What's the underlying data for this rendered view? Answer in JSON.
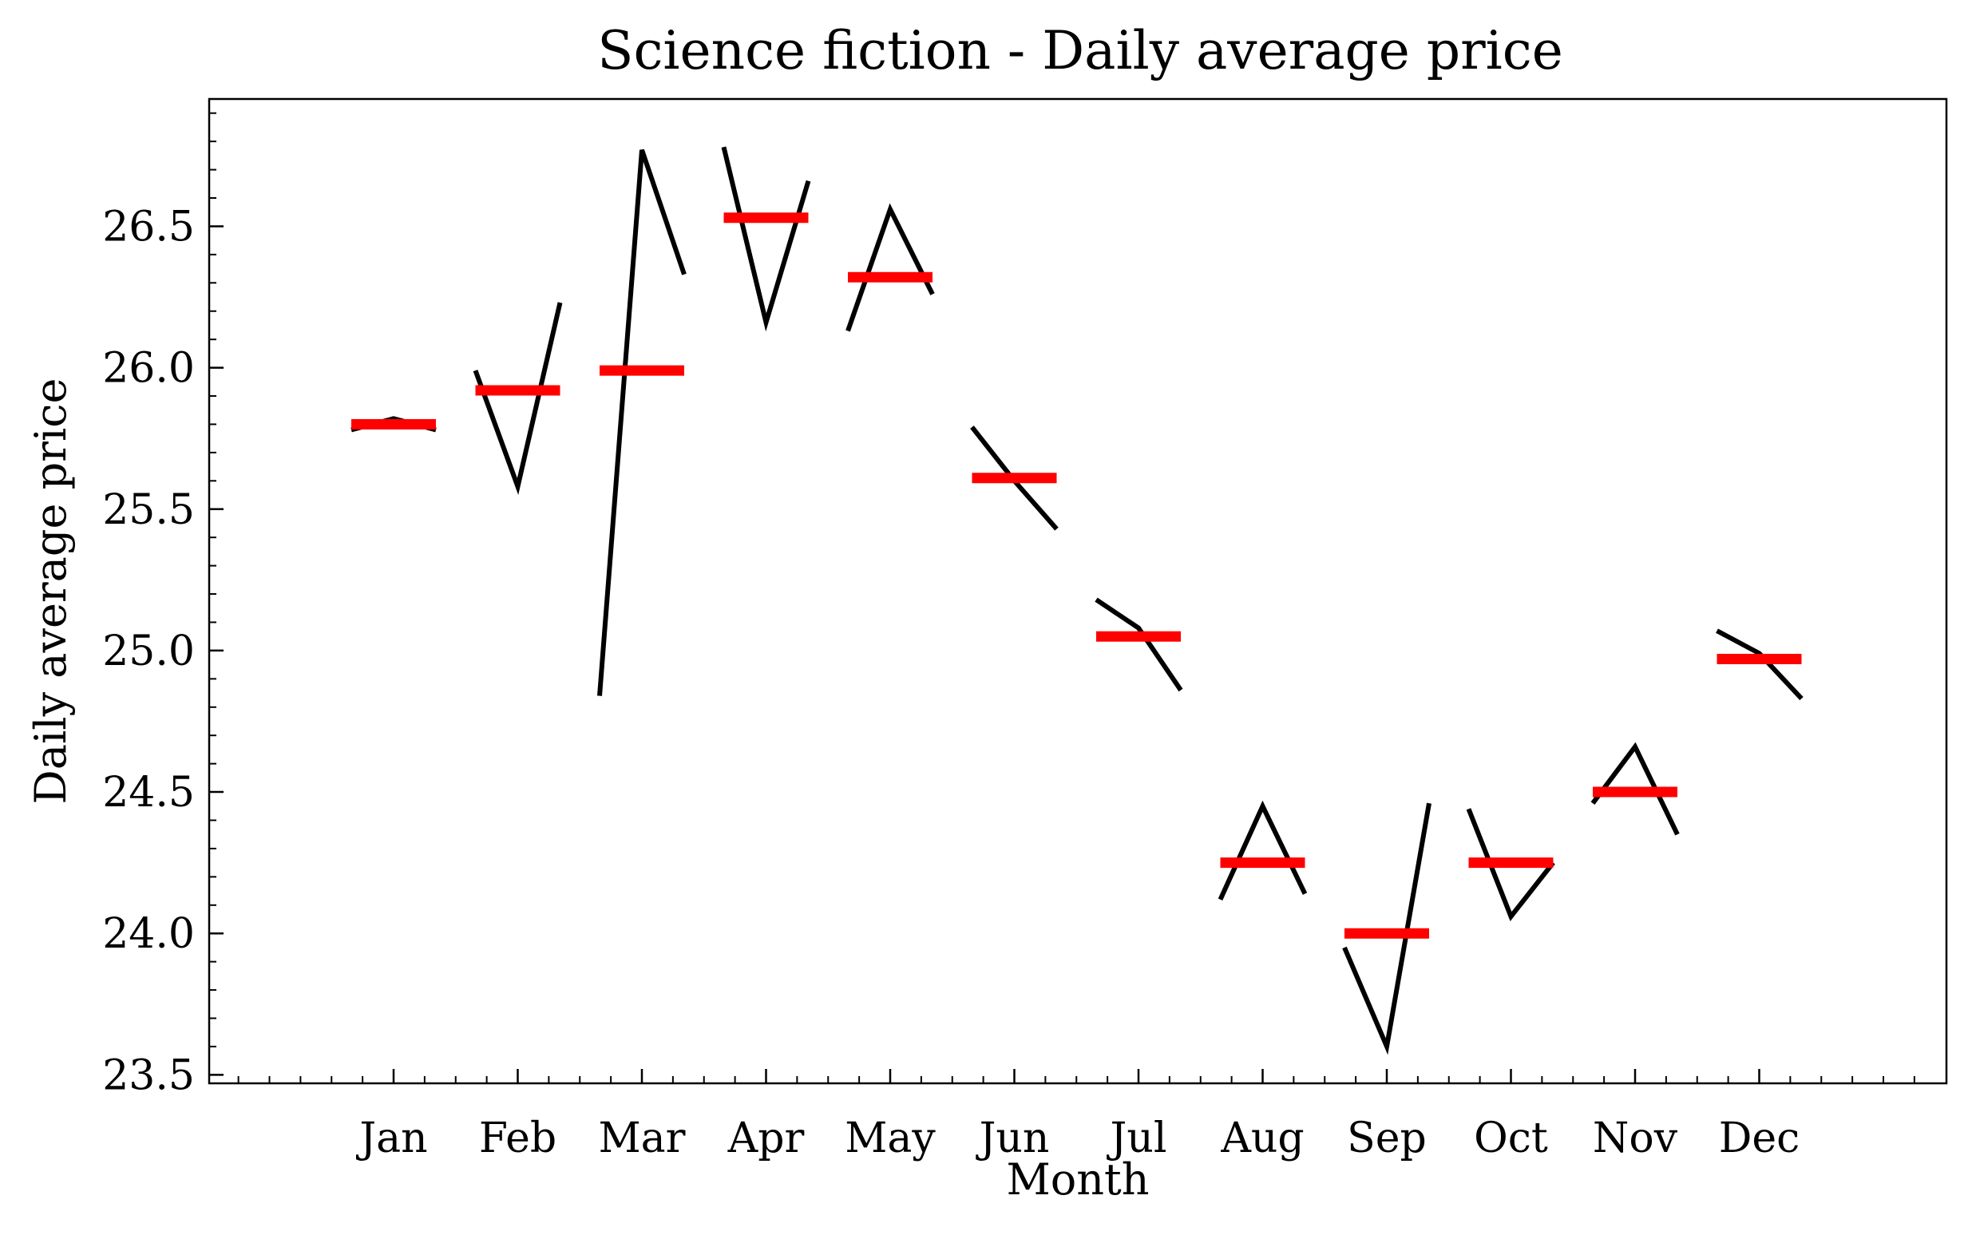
{
  "chart_data": {
    "type": "line",
    "title": "Science fiction - Daily average price",
    "xlabel": "Month",
    "ylabel": "Daily average price",
    "categories": [
      "Jan",
      "Feb",
      "Mar",
      "Apr",
      "May",
      "Jun",
      "Jul",
      "Aug",
      "Sep",
      "Oct",
      "Nov",
      "Dec"
    ],
    "ylim": [
      23.47,
      26.95
    ],
    "yticks": [
      23.5,
      24.0,
      24.5,
      25.0,
      25.5,
      26.0,
      26.5
    ],
    "ytick_labels": [
      "23.5",
      "24.0",
      "24.5",
      "25.0",
      "25.5",
      "26.0",
      "26.5"
    ],
    "series": [
      {
        "kind": "daily-price-segments",
        "color": "#000000",
        "values": [
          [
            25.78,
            25.82,
            25.78
          ],
          [
            25.99,
            25.58,
            26.23
          ],
          [
            24.84,
            26.77,
            26.33
          ],
          [
            26.78,
            26.16,
            26.66
          ],
          [
            26.13,
            26.56,
            26.26
          ],
          [
            25.79,
            25.6,
            25.43
          ],
          [
            25.18,
            25.08,
            24.86
          ],
          [
            24.12,
            24.45,
            24.14
          ],
          [
            23.95,
            23.6,
            24.46
          ],
          [
            24.44,
            24.06,
            24.25
          ],
          [
            24.46,
            24.66,
            24.35
          ],
          [
            25.07,
            24.99,
            24.83
          ]
        ]
      },
      {
        "kind": "monthly-mean",
        "color": "#ff0000",
        "values": [
          25.8,
          25.92,
          25.99,
          26.53,
          26.32,
          25.61,
          25.05,
          24.25,
          24.0,
          24.25,
          24.5,
          24.97
        ]
      }
    ],
    "grid": false,
    "legend": "none"
  }
}
